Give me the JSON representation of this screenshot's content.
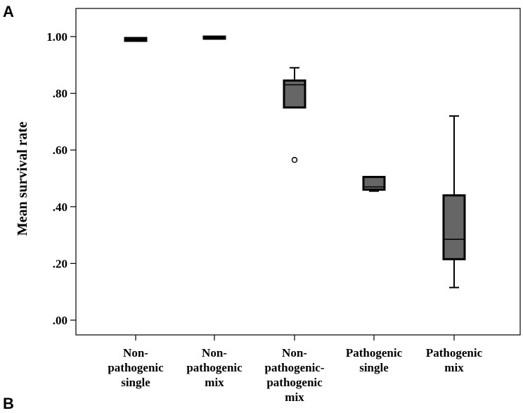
{
  "figure": {
    "panel_a": "A",
    "panel_b": "B"
  },
  "chart_data": {
    "type": "boxplot",
    "ylabel": "Mean survival rate",
    "xlabel": "",
    "ylim": [
      0,
      1.05
    ],
    "yticks": [
      ".00",
      ".20",
      ".40",
      ".60",
      ".80",
      "1.00"
    ],
    "ytick_values": [
      0,
      0.2,
      0.4,
      0.6,
      0.8,
      1.0
    ],
    "grid": false,
    "box_color": "#666666",
    "categories": [
      {
        "lines": [
          "Non-",
          "pathogenic",
          "single"
        ]
      },
      {
        "lines": [
          "Non-",
          "pathogenic",
          "mix"
        ]
      },
      {
        "lines": [
          "Non-",
          "pathogenic-",
          "pathogenic",
          "mix"
        ]
      },
      {
        "lines": [
          "Pathogenic",
          "single"
        ]
      },
      {
        "lines": [
          "Pathogenic",
          "mix"
        ]
      }
    ],
    "boxes": [
      {
        "min": 0.985,
        "q1": 0.985,
        "median": 0.99,
        "q3": 0.995,
        "max": 0.995,
        "outliers": []
      },
      {
        "min": 1.0,
        "q1": 1.0,
        "median": 1.0,
        "q3": 1.0,
        "max": 1.0,
        "outliers": []
      },
      {
        "min": 0.75,
        "q1": 0.75,
        "median": 0.83,
        "q3": 0.845,
        "max": 0.89,
        "outliers": [
          0.565
        ]
      },
      {
        "min": 0.455,
        "q1": 0.46,
        "median": 0.47,
        "q3": 0.505,
        "max": 0.505,
        "outliers": []
      },
      {
        "min": 0.115,
        "q1": 0.215,
        "median": 0.285,
        "q3": 0.44,
        "max": 0.72,
        "outliers": []
      }
    ]
  }
}
